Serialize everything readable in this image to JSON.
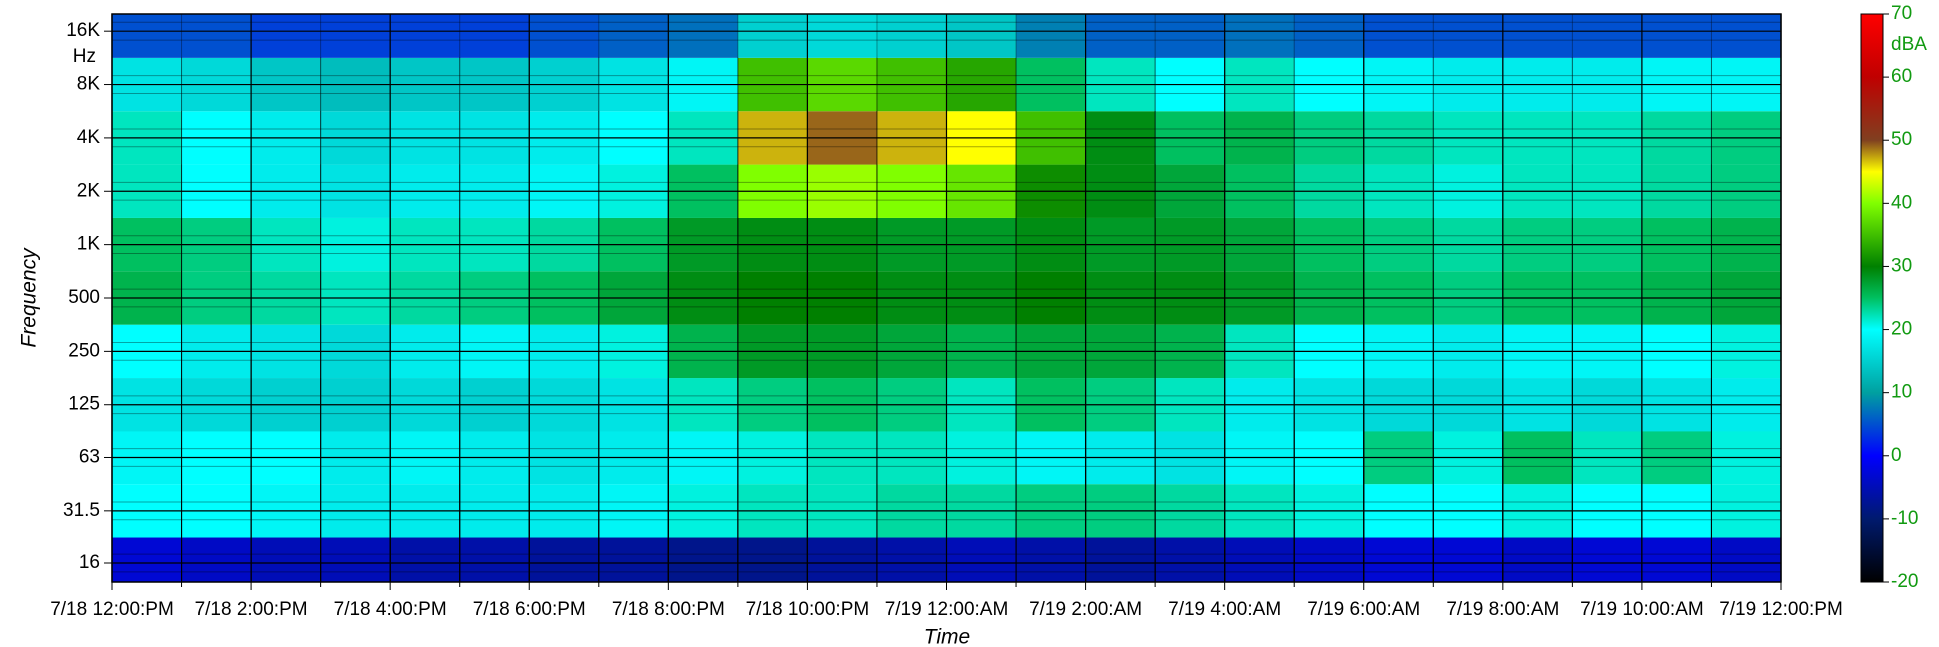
{
  "chart_data": {
    "type": "heatmap",
    "x_label": "Time",
    "y_label": "Frequency",
    "y_unit": "Hz",
    "colorbar_unit": "dBA",
    "x_labels": [
      "7/18 12:00:PM",
      "7/18 2:00:PM",
      "7/18 4:00:PM",
      "7/18 6:00:PM",
      "7/18 8:00:PM",
      "7/18 10:00:PM",
      "7/19 12:00:AM",
      "7/19 2:00:AM",
      "7/19 4:00:AM",
      "7/19 6:00:AM",
      "7/19 8:00:AM",
      "7/19 10:00:AM",
      "7/19 12:00:PM"
    ],
    "ylog": true,
    "ylim": [
      12.5,
      20000
    ],
    "yticks": [
      16,
      31.5,
      63,
      125,
      250,
      500,
      {
        "value": 1000,
        "label": "1K"
      },
      {
        "value": 2000,
        "label": "2K"
      },
      {
        "value": 4000,
        "label": "4K"
      },
      {
        "value": 8000,
        "label": "8K"
      },
      {
        "value": 16000,
        "label": "16K"
      }
    ],
    "zlim": [
      -20,
      70
    ],
    "zticks": [
      -20,
      -10,
      0,
      10,
      20,
      30,
      40,
      50,
      60,
      70
    ],
    "colorscale": [
      [
        -20,
        "#000000"
      ],
      [
        -10,
        "#001a6e"
      ],
      [
        0,
        "#0000ff"
      ],
      [
        10,
        "#00a0a0"
      ],
      [
        20,
        "#00ffff"
      ],
      [
        25,
        "#00c060"
      ],
      [
        30,
        "#008000"
      ],
      [
        40,
        "#80ff00"
      ],
      [
        45,
        "#ffff00"
      ],
      [
        50,
        "#804020"
      ],
      [
        60,
        "#c00000"
      ],
      [
        70,
        "#ff0000"
      ]
    ],
    "z": [
      [
        -3,
        -4,
        -5,
        -5,
        -6,
        -6,
        -7,
        -7,
        -8,
        -8,
        -7,
        -6,
        -5,
        -6,
        -7,
        -6,
        -5,
        -4,
        -3,
        -3,
        -4,
        -3,
        -3,
        -4
      ],
      [
        20,
        20,
        19,
        18,
        18,
        18,
        18,
        19,
        21,
        22,
        22,
        23,
        23,
        24,
        24,
        23,
        22,
        21,
        20,
        20,
        21,
        20,
        20,
        21
      ],
      [
        19,
        20,
        20,
        18,
        19,
        18,
        17,
        18,
        19,
        21,
        22,
        22,
        21,
        19,
        18,
        17,
        19,
        20,
        24,
        21,
        25,
        22,
        24,
        21
      ],
      [
        17,
        16,
        15,
        15,
        16,
        15,
        16,
        17,
        22,
        24,
        25,
        24,
        22,
        25,
        24,
        22,
        18,
        17,
        16,
        16,
        17,
        16,
        17,
        18
      ],
      [
        20,
        18,
        17,
        16,
        18,
        19,
        18,
        21,
        26,
        28,
        28,
        27,
        26,
        27,
        27,
        26,
        22,
        20,
        19,
        18,
        19,
        19,
        20,
        21
      ],
      [
        26,
        24,
        23,
        22,
        23,
        24,
        25,
        27,
        29,
        30,
        30,
        29,
        29,
        30,
        29,
        29,
        28,
        26,
        25,
        24,
        25,
        25,
        26,
        27
      ],
      [
        25,
        24,
        22,
        21,
        22,
        22,
        23,
        25,
        28,
        29,
        29,
        28,
        28,
        29,
        28,
        28,
        27,
        25,
        24,
        23,
        24,
        24,
        25,
        26
      ],
      [
        22,
        20,
        18,
        17,
        18,
        18,
        19,
        21,
        25,
        40,
        41,
        40,
        38,
        31,
        29,
        27,
        25,
        23,
        22,
        21,
        22,
        22,
        23,
        24
      ],
      [
        22,
        20,
        18,
        16,
        17,
        17,
        18,
        20,
        22,
        47,
        49,
        47,
        45,
        35,
        29,
        25,
        26,
        24,
        23,
        22,
        22,
        22,
        23,
        24
      ],
      [
        17,
        16,
        14,
        13,
        14,
        14,
        15,
        17,
        19,
        35,
        37,
        35,
        33,
        25,
        22,
        20,
        22,
        20,
        19,
        18,
        18,
        18,
        19,
        19
      ],
      [
        5,
        5,
        4,
        4,
        4,
        4,
        5,
        6,
        7,
        15,
        16,
        15,
        14,
        8,
        6,
        6,
        7,
        6,
        5,
        5,
        5,
        5,
        5,
        5
      ]
    ]
  }
}
